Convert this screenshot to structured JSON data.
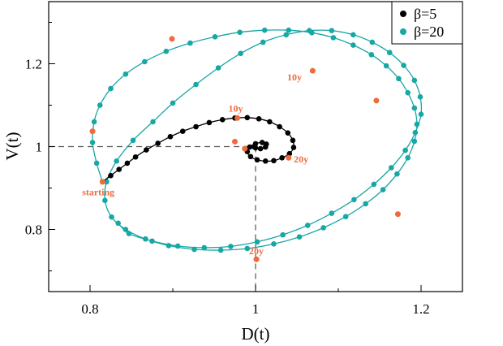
{
  "chart_data": {
    "type": "line",
    "title": "",
    "xlabel": "D(t)",
    "ylabel": "V(t)",
    "xlim": [
      0.75,
      1.25
    ],
    "ylim": [
      0.65,
      1.35
    ],
    "xticks": [
      "0.8",
      "1",
      "1.2"
    ],
    "yticks": [
      "0.8",
      "1",
      "1.2"
    ],
    "grid": false,
    "legend_position": "top-right",
    "reference_point": {
      "x": 1.0,
      "y": 1.0
    },
    "colors": {
      "beta5": "#000000",
      "beta20": "#17a7a5",
      "markers": "#f06a3d"
    },
    "series": [
      {
        "name": "β=5",
        "x": [
          0.815,
          0.825,
          0.835,
          0.845,
          0.855,
          0.868,
          0.882,
          0.897,
          0.912,
          0.928,
          0.944,
          0.96,
          0.975,
          0.99,
          1.004,
          1.017,
          1.029,
          1.039,
          1.045,
          1.046,
          1.041,
          1.032,
          1.022,
          1.012,
          1.002,
          0.994,
          0.99,
          0.993,
          1.0,
          1.008,
          1.013,
          1.012,
          1.006,
          1.0,
          0.998
        ],
        "y": [
          0.915,
          0.93,
          0.945,
          0.96,
          0.975,
          0.992,
          1.008,
          1.024,
          1.037,
          1.048,
          1.058,
          1.065,
          1.069,
          1.07,
          1.067,
          1.06,
          1.048,
          1.033,
          1.015,
          0.998,
          0.983,
          0.973,
          0.966,
          0.965,
          0.968,
          0.976,
          0.988,
          0.999,
          1.007,
          1.01,
          1.006,
          0.999,
          0.995,
          0.997,
          1.0
        ]
      },
      {
        "name": "β=20",
        "x": [
          0.815,
          0.808,
          0.803,
          0.805,
          0.812,
          0.825,
          0.843,
          0.866,
          0.892,
          0.921,
          0.951,
          0.981,
          1.011,
          1.04,
          1.068,
          1.094,
          1.118,
          1.14,
          1.158,
          1.173,
          1.184,
          1.192,
          1.195,
          1.192,
          1.184,
          1.171,
          1.154,
          1.133,
          1.109,
          1.082,
          1.053,
          1.022,
          0.99,
          0.958,
          0.926,
          0.895,
          0.867,
          0.843,
          0.826,
          0.818,
          0.82,
          0.832,
          0.852,
          0.876,
          0.9,
          0.928,
          0.955,
          0.982,
          1.009,
          1.037,
          1.065,
          1.092,
          1.118,
          1.141,
          1.162,
          1.179,
          1.192,
          1.199,
          1.2,
          1.193,
          1.181,
          1.164,
          1.143,
          1.119,
          1.092,
          1.063,
          1.033,
          1.002,
          0.97,
          0.938,
          0.906,
          0.875,
          0.847,
          0.834
        ],
        "y": [
          0.915,
          0.96,
          1.01,
          1.06,
          1.1,
          1.14,
          1.175,
          1.205,
          1.23,
          1.25,
          1.265,
          1.276,
          1.281,
          1.281,
          1.275,
          1.263,
          1.245,
          1.222,
          1.195,
          1.164,
          1.13,
          1.093,
          1.054,
          1.013,
          0.973,
          0.934,
          0.896,
          0.862,
          0.831,
          0.804,
          0.782,
          0.765,
          0.754,
          0.75,
          0.752,
          0.761,
          0.777,
          0.8,
          0.83,
          0.87,
          0.915,
          0.965,
          1.015,
          1.06,
          1.105,
          1.15,
          1.19,
          1.225,
          1.252,
          1.27,
          1.28,
          1.28,
          1.27,
          1.252,
          1.227,
          1.196,
          1.16,
          1.12,
          1.078,
          1.034,
          0.991,
          0.949,
          0.909,
          0.872,
          0.839,
          0.81,
          0.787,
          0.77,
          0.759,
          0.756,
          0.76,
          0.772,
          0.79,
          0.815
        ]
      }
    ],
    "annotations": [
      {
        "text": "starting",
        "x": 0.81,
        "y": 0.882
      },
      {
        "text": "10y",
        "x": 0.976,
        "y": 1.084
      },
      {
        "text": "20y",
        "x": 1.055,
        "y": 0.962
      },
      {
        "text": "10y",
        "x": 1.047,
        "y": 1.16
      },
      {
        "text": "20y",
        "x": 1.001,
        "y": 0.74
      }
    ],
    "highlight_points": [
      {
        "x": 0.815,
        "y": 0.915
      },
      {
        "x": 0.978,
        "y": 1.069
      },
      {
        "x": 1.04,
        "y": 0.973
      },
      {
        "x": 0.987,
        "y": 0.995
      },
      {
        "x": 0.975,
        "y": 1.012
      },
      {
        "x": 0.803,
        "y": 1.037
      },
      {
        "x": 0.899,
        "y": 1.26
      },
      {
        "x": 1.069,
        "y": 1.183
      },
      {
        "x": 1.146,
        "y": 1.111
      },
      {
        "x": 1.172,
        "y": 0.837
      },
      {
        "x": 1.001,
        "y": 0.728
      }
    ],
    "legend": [
      {
        "label": "β=5",
        "color": "#000000"
      },
      {
        "label": "β=20",
        "color": "#17a7a5"
      }
    ]
  }
}
